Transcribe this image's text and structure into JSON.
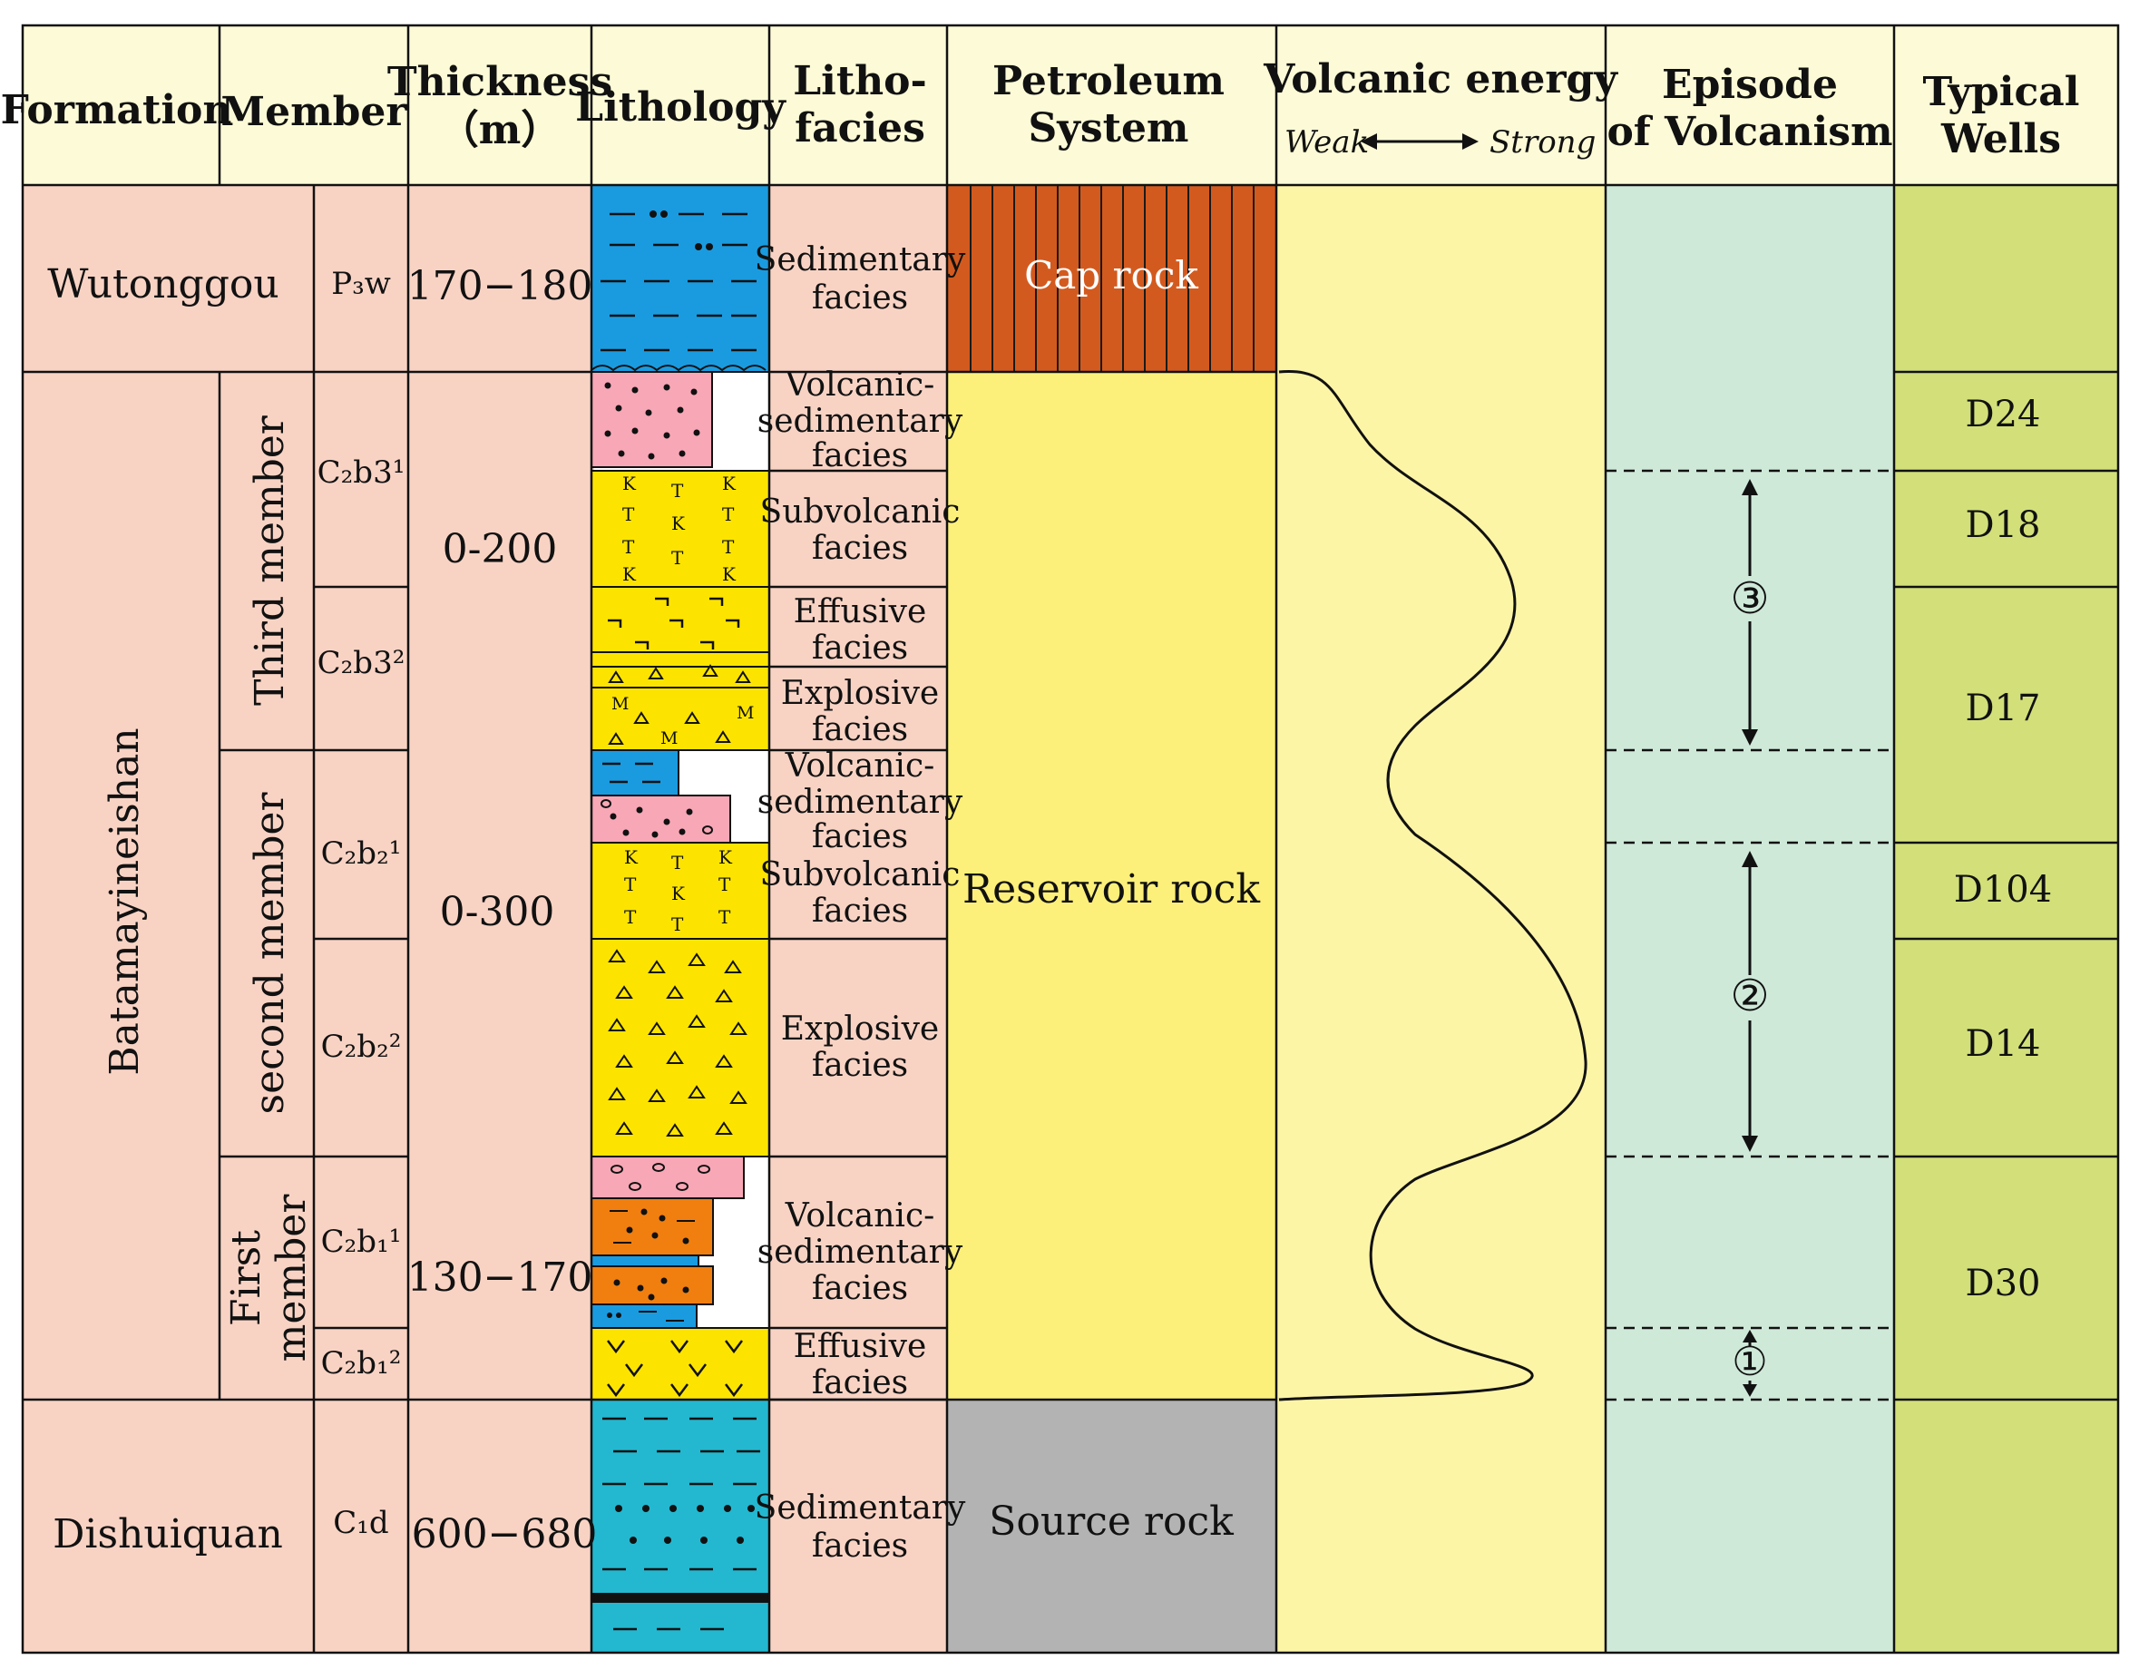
{
  "headers": {
    "formation": "Formation",
    "member": "Member",
    "thickness_1": "Thickness",
    "thickness_2": "（m）",
    "lithology": "Lithology",
    "lithofacies_1": "Litho-",
    "lithofacies_2": "facies",
    "petroleum_1": "Petroleum",
    "petroleum_2": "System",
    "volcanic_energy": "Volcanic energy",
    "weak": "Weak",
    "strong": "Strong",
    "episode_1": "Episode",
    "episode_2": "of Volcanism",
    "wells_1": "Typical",
    "wells_2": "Wells"
  },
  "formations": [
    {
      "name": "Wutonggou",
      "code": "P₃w",
      "thickness": "170−180"
    },
    {
      "name": "Batamayineishan"
    },
    {
      "name": "Dishuiquan",
      "code": "C₁d",
      "thickness": "600−680"
    }
  ],
  "members": [
    {
      "name": "Third member",
      "thickness": "0-200"
    },
    {
      "name": "second member",
      "thickness": "0-300"
    },
    {
      "name_1": "First",
      "name_2": "member",
      "thickness": "130−170"
    }
  ],
  "submembers": [
    "C₂b3¹",
    "C₂b3²",
    "C₂b₂¹",
    "C₂b₂²",
    "C₂b₁¹",
    "C₂b₁²"
  ],
  "facies": [
    [
      "Sedimentary",
      "facies"
    ],
    [
      "Volcanic-",
      "sedimentary",
      "facies"
    ],
    [
      "Subvolcanic",
      "facies"
    ],
    [
      "Effusive",
      "facies"
    ],
    [
      "Explosive",
      "facies"
    ],
    [
      "Volcanic-",
      "sedimentary",
      "facies"
    ],
    [
      "Subvolcanic",
      "facies"
    ],
    [
      "Explosive",
      "facies"
    ],
    [
      "Volcanic-",
      "sedimentary",
      "facies"
    ],
    [
      "Effusive",
      "facies"
    ],
    [
      "Sedimentary",
      "facies"
    ]
  ],
  "petroleum_system": {
    "cap": "Cap rock",
    "reservoir": "Reservoir rock",
    "source": "Source rock"
  },
  "episodes": [
    "③",
    "②",
    "①"
  ],
  "wells": [
    "D24",
    "D18",
    "D17",
    "D104",
    "D14",
    "D30"
  ],
  "colors": {
    "header_bg": "#fdfbd7",
    "formation_bg": "#f8d3c4",
    "cap": "#d35a1e",
    "reservoir": "#fdf07a",
    "source": "#b3b3b3",
    "energy_bg": "#fdf5a6",
    "episode_bg": "#cfe9d9",
    "wells_bg": "#d3e07a",
    "blue": "#1a9be0",
    "teal": "#23b8d0",
    "yellow": "#fde400",
    "pink": "#f8a7b6",
    "orange": "#f07f10"
  }
}
